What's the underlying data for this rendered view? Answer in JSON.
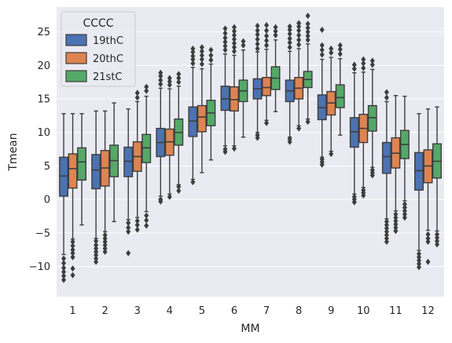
{
  "chart_data": {
    "type": "boxplot",
    "xlabel": "MM",
    "ylabel": "Tmean",
    "ylim": [
      -14.5,
      28.7
    ],
    "yticks": [
      -10,
      -5,
      0,
      5,
      10,
      15,
      20,
      25
    ],
    "ytick_labels": [
      "−10",
      "−5",
      "0",
      "5",
      "10",
      "15",
      "20",
      "25"
    ],
    "grid": true,
    "categories": [
      "1",
      "2",
      "3",
      "4",
      "5",
      "6",
      "7",
      "8",
      "9",
      "10",
      "11",
      "12"
    ],
    "legend": {
      "title": "CCCC",
      "placement": "upper-left"
    },
    "series": [
      {
        "name": "19thC",
        "color": "#4c72b0",
        "boxes": [
          {
            "whislo": -8.2,
            "q1": 0.5,
            "med": 3.5,
            "q3": 6.3,
            "whishi": 12.8,
            "fliers": [
              -8.8,
              -9.5,
              -10.2,
              -10.8,
              -11.4,
              -12.0
            ]
          },
          {
            "whislo": -5.8,
            "q1": 1.6,
            "med": 4.4,
            "q3": 6.7,
            "whishi": 13.2,
            "fliers": [
              -6.2,
              -6.8,
              -7.3,
              -7.8,
              -8.3,
              -8.8,
              -9.3
            ]
          },
          {
            "whislo": -3.0,
            "q1": 3.4,
            "med": 5.7,
            "q3": 7.8,
            "whishi": 13.5,
            "fliers": [
              -3.5,
              -4.2,
              -4.8,
              -8.0
            ]
          },
          {
            "whislo": 0.5,
            "q1": 6.4,
            "med": 8.5,
            "q3": 10.6,
            "whishi": 16.6,
            "fliers": [
              0.0,
              -0.3,
              17.2,
              17.8,
              18.4,
              18.9
            ]
          },
          {
            "whislo": 3.0,
            "q1": 9.4,
            "med": 11.7,
            "q3": 13.8,
            "whishi": 19.7,
            "fliers": [
              2.6,
              20.3,
              20.9,
              21.4,
              22.0,
              22.5
            ]
          },
          {
            "whislo": 8.0,
            "q1": 13.3,
            "med": 15.0,
            "q3": 16.9,
            "whishi": 21.7,
            "fliers": [
              7.5,
              7.1,
              22.3,
              22.9,
              23.5,
              24.1,
              24.8,
              25.5
            ]
          },
          {
            "whislo": 10.0,
            "q1": 15.0,
            "med": 16.5,
            "q3": 18.0,
            "whishi": 22.0,
            "fliers": [
              9.6,
              9.2,
              22.5,
              23.2,
              23.9,
              24.6,
              25.2,
              25.9
            ]
          },
          {
            "whislo": 9.3,
            "q1": 14.6,
            "med": 16.2,
            "q3": 17.8,
            "whishi": 22.1,
            "fliers": [
              9.0,
              8.6,
              22.7,
              23.4,
              24.0,
              24.7,
              25.3,
              25.8
            ]
          },
          {
            "whislo": 6.3,
            "q1": 11.9,
            "med": 13.7,
            "q3": 15.6,
            "whishi": 20.9,
            "fliers": [
              6.0,
              5.6,
              5.2,
              21.6,
              22.3,
              23.0,
              25.3
            ]
          },
          {
            "whislo": 0.8,
            "q1": 7.8,
            "med": 10.1,
            "q3": 12.2,
            "whishi": 18.9,
            "fliers": [
              0.4,
              0.0,
              -0.4,
              19.5,
              20.1
            ]
          },
          {
            "whislo": -2.9,
            "q1": 3.9,
            "med": 6.4,
            "q3": 8.5,
            "whishi": 14.6,
            "fliers": [
              -3.3,
              -3.8,
              -4.3,
              -4.8,
              -5.3,
              -5.8,
              -6.3,
              15.2,
              16.0
            ]
          },
          {
            "whislo": -7.6,
            "q1": 1.4,
            "med": 4.3,
            "q3": 7.0,
            "whishi": 12.8,
            "fliers": [
              -8.1,
              -8.6,
              -9.1,
              -9.6,
              -10.1
            ]
          }
        ]
      },
      {
        "name": "20thC",
        "color": "#dd8452",
        "boxes": [
          {
            "whislo": -5.9,
            "q1": 1.7,
            "med": 4.6,
            "q3": 6.8,
            "whishi": 12.8,
            "fliers": [
              -6.3,
              -6.9,
              -7.5,
              -8.0,
              -8.6,
              -10.3,
              -11.3
            ]
          },
          {
            "whislo": -4.8,
            "q1": 2.0,
            "med": 4.7,
            "q3": 7.3,
            "whishi": 13.2,
            "fliers": [
              -5.3,
              -5.8,
              -6.3,
              -6.8,
              -7.3,
              -7.8
            ]
          },
          {
            "whislo": -2.7,
            "q1": 4.2,
            "med": 6.4,
            "q3": 8.6,
            "whishi": 14.6,
            "fliers": [
              -3.2,
              -3.8,
              -4.5,
              15.2,
              15.9
            ]
          },
          {
            "whislo": 0.8,
            "q1": 6.6,
            "med": 8.6,
            "q3": 10.5,
            "whishi": 16.5,
            "fliers": [
              0.4,
              17.1,
              17.6,
              18.1
            ]
          },
          {
            "whislo": 4.0,
            "q1": 10.1,
            "med": 12.3,
            "q3": 14.0,
            "whishi": 19.5,
            "fliers": [
              20.2,
              20.9,
              21.5,
              22.1,
              22.7
            ]
          },
          {
            "whislo": 8.0,
            "q1": 13.2,
            "med": 14.9,
            "q3": 16.8,
            "whishi": 21.5,
            "fliers": [
              7.6,
              22.1,
              22.7,
              23.3,
              23.9,
              24.5,
              25.1,
              25.7
            ]
          },
          {
            "whislo": 11.8,
            "q1": 15.5,
            "med": 16.7,
            "q3": 18.2,
            "whishi": 22.4,
            "fliers": [
              11.4,
              23.0,
              23.7,
              24.4,
              25.2,
              26.0
            ]
          },
          {
            "whislo": 11.0,
            "q1": 15.0,
            "med": 16.6,
            "q3": 18.2,
            "whishi": 22.5,
            "fliers": [
              10.6,
              23.1,
              23.8,
              24.5,
              25.2,
              25.8,
              26.3
            ]
          },
          {
            "whislo": 7.2,
            "q1": 12.6,
            "med": 14.4,
            "q3": 16.1,
            "whishi": 21.2,
            "fliers": [
              6.8,
              21.9,
              22.5
            ]
          },
          {
            "whislo": 1.8,
            "q1": 8.5,
            "med": 10.6,
            "q3": 12.7,
            "whishi": 19.0,
            "fliers": [
              1.4,
              1.0,
              0.6,
              19.6,
              20.3,
              20.9
            ]
          },
          {
            "whislo": -1.7,
            "q1": 4.7,
            "med": 6.9,
            "q3": 9.2,
            "whishi": 15.5,
            "fliers": [
              -2.2,
              -2.7,
              -3.2,
              -3.7,
              -4.2,
              -4.7
            ]
          },
          {
            "whislo": -4.6,
            "q1": 2.5,
            "med": 5.0,
            "q3": 7.4,
            "whishi": 13.5,
            "fliers": [
              -5.2,
              -5.8,
              -6.3,
              -9.3
            ]
          }
        ]
      },
      {
        "name": "21stC",
        "color": "#55a868",
        "boxes": [
          {
            "whislo": -3.8,
            "q1": 2.9,
            "med": 5.6,
            "q3": 7.7,
            "whishi": 12.8,
            "fliers": []
          },
          {
            "whislo": -3.3,
            "q1": 3.4,
            "med": 5.8,
            "q3": 8.1,
            "whishi": 14.4,
            "fliers": []
          },
          {
            "whislo": -1.8,
            "q1": 5.5,
            "med": 7.7,
            "q3": 9.7,
            "whishi": 15.4,
            "fliers": [
              -2.4,
              -3.1,
              -3.9,
              16.2,
              16.8
            ]
          },
          {
            "whislo": 2.2,
            "q1": 8.1,
            "med": 10.0,
            "q3": 12.0,
            "whishi": 16.9,
            "fliers": [
              1.9,
              1.3,
              17.5,
              18.1,
              18.7
            ]
          },
          {
            "whislo": 5.9,
            "q1": 11.0,
            "med": 12.9,
            "q3": 14.8,
            "whishi": 20.2,
            "fliers": [
              20.8,
              21.5,
              22.3
            ]
          },
          {
            "whislo": 9.3,
            "q1": 14.6,
            "med": 16.2,
            "q3": 17.8,
            "whishi": 22.3,
            "fliers": [
              23.0,
              23.6
            ]
          },
          {
            "whislo": 13.1,
            "q1": 16.4,
            "med": 18.1,
            "q3": 19.8,
            "whishi": 23.8,
            "fliers": [
              24.5,
              25.1,
              25.7
            ]
          },
          {
            "whislo": 12.0,
            "q1": 16.7,
            "med": 17.9,
            "q3": 19.1,
            "whishi": 23.2,
            "fliers": [
              11.6,
              23.8,
              24.4,
              25.0,
              25.6,
              26.2,
              27.4
            ]
          },
          {
            "whislo": 9.6,
            "q1": 13.7,
            "med": 15.2,
            "q3": 17.1,
            "whishi": 21.0,
            "fliers": [
              21.7,
              22.4,
              23.0
            ]
          },
          {
            "whislo": 4.8,
            "q1": 10.2,
            "med": 12.2,
            "q3": 14.0,
            "whishi": 19.4,
            "fliers": [
              4.4,
              4.0,
              3.6,
              20.1,
              20.7
            ]
          },
          {
            "whislo": -0.2,
            "q1": 6.1,
            "med": 8.2,
            "q3": 10.3,
            "whishi": 15.4,
            "fliers": [
              -0.7,
              -1.2,
              -1.7,
              -2.2,
              -2.7
            ]
          },
          {
            "whislo": -4.7,
            "q1": 3.2,
            "med": 5.7,
            "q3": 8.3,
            "whishi": 13.8,
            "fliers": [
              -5.2,
              -5.7,
              -6.2,
              -6.7
            ]
          }
        ]
      }
    ]
  }
}
